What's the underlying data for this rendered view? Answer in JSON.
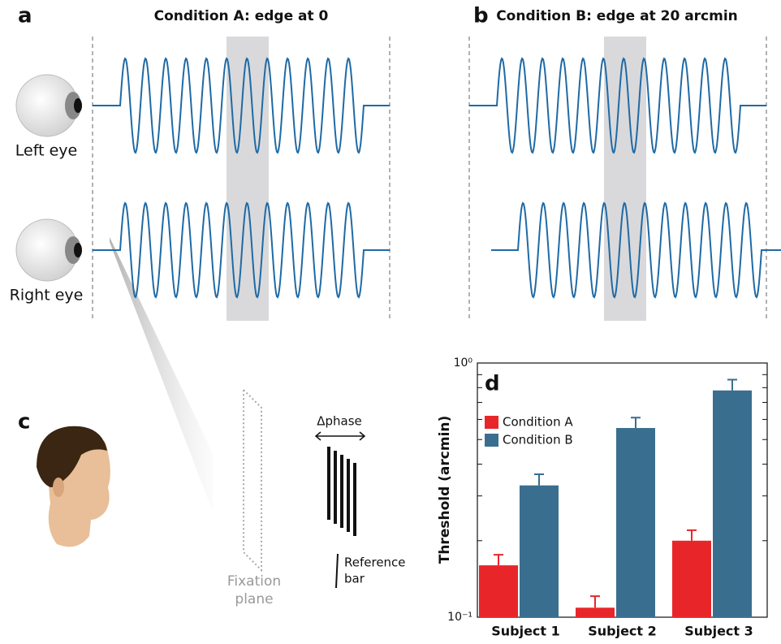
{
  "panels": {
    "a": {
      "letter": "a",
      "title": "Condition A: edge at 0"
    },
    "b": {
      "letter": "b",
      "title": "Condition B: edge at 20 arcmin"
    },
    "eyes": [
      "Left eye",
      "Right eye"
    ],
    "c": {
      "letter": "c",
      "phase_label": "Δphase",
      "reference": [
        "Reference",
        "bar"
      ],
      "fixation": [
        "Fixation",
        "plane"
      ]
    },
    "d": {
      "letter": "d"
    }
  },
  "chart_data": {
    "type": "bar",
    "ylabel": "Threshold (arcmin)",
    "categories": [
      "Subject 1",
      "Subject 2",
      "Subject 3"
    ],
    "series": [
      {
        "name": "Condition A",
        "color": "#e8262a",
        "values": [
          0.16,
          0.109,
          0.2
        ],
        "errors": [
          0.016,
          0.012,
          0.02
        ]
      },
      {
        "name": "Condition B",
        "color": "#3a6e8f",
        "values": [
          0.33,
          0.555,
          0.78
        ],
        "errors": [
          0.035,
          0.055,
          0.08
        ]
      }
    ],
    "log_scale": true,
    "ylim": [
      0.1,
      1
    ],
    "yticks": [
      {
        "value": 0.1,
        "label": "10⁻¹"
      },
      {
        "value": 1,
        "label": "10⁰"
      }
    ],
    "minor_yticks": [
      0.2,
      0.3,
      0.4,
      0.5,
      0.6,
      0.7,
      0.8,
      0.9
    ],
    "legend": "upper left"
  }
}
